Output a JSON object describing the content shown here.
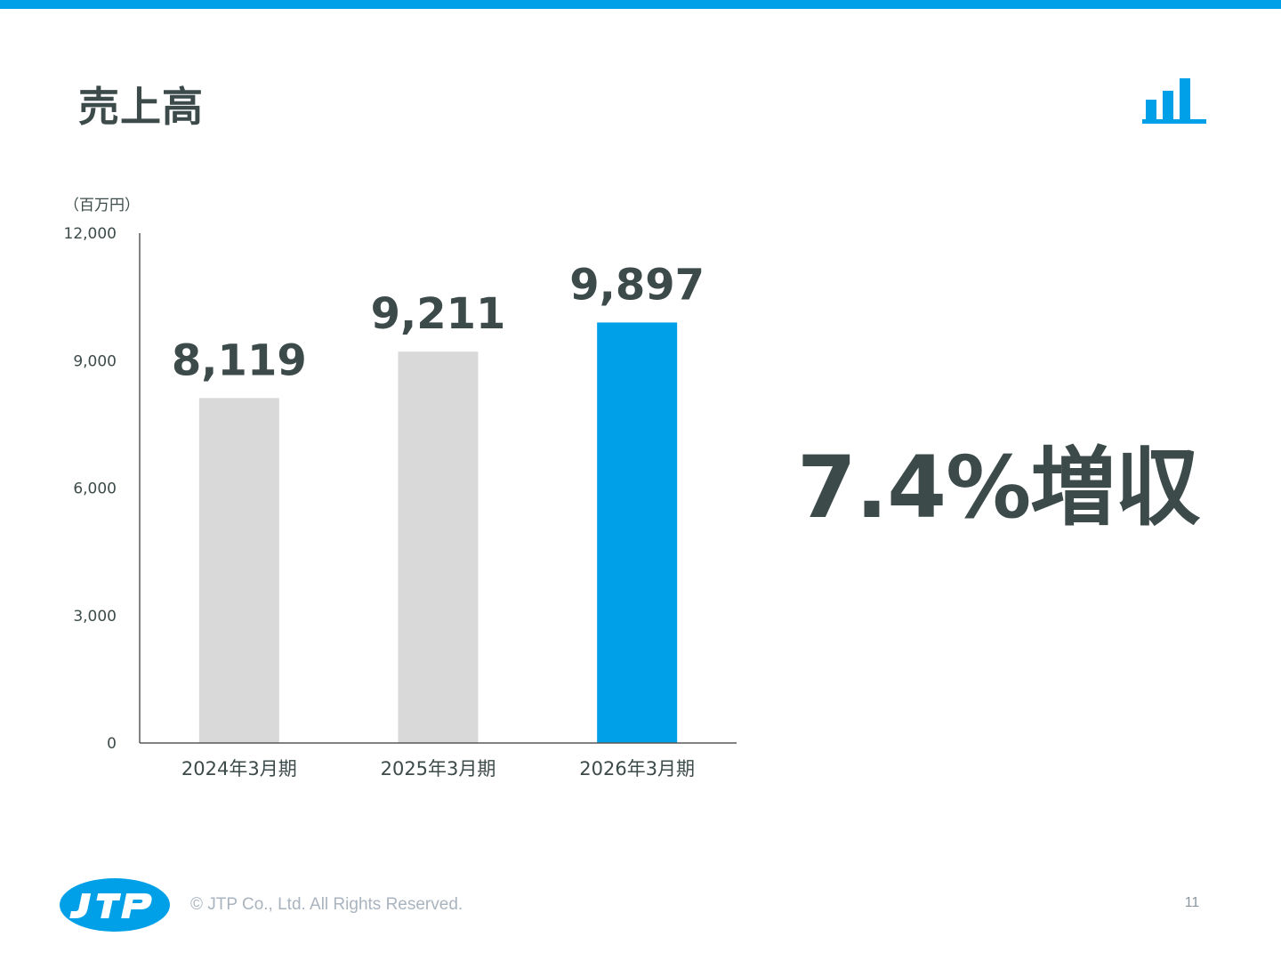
{
  "page": {
    "title": "売上高",
    "highlight": "7.4%増収",
    "copyright": "© JTP Co., Ltd. All Rights Reserved.",
    "page_number": "11",
    "logo_text": "JTP",
    "header_icon": "bar-chart-icon",
    "accent_color": "#00a0e9",
    "text_color": "#3d4a4a"
  },
  "chart_data": {
    "type": "bar",
    "unit_label": "（百万円）",
    "categories": [
      "2024年3月期",
      "2025年3月期",
      "2026年3月期"
    ],
    "values": [
      8119,
      9211,
      9897
    ],
    "value_labels": [
      "8,119",
      "9,211",
      "9,897"
    ],
    "colors": [
      "#d9d9d9",
      "#d9d9d9",
      "#00a0e9"
    ],
    "ylim": [
      0,
      12000
    ],
    "yticks": [
      0,
      3000,
      6000,
      9000,
      12000
    ],
    "ytick_labels": [
      "0",
      "3,000",
      "6,000",
      "9,000",
      "12,000"
    ],
    "grid": false,
    "legend": "none"
  }
}
